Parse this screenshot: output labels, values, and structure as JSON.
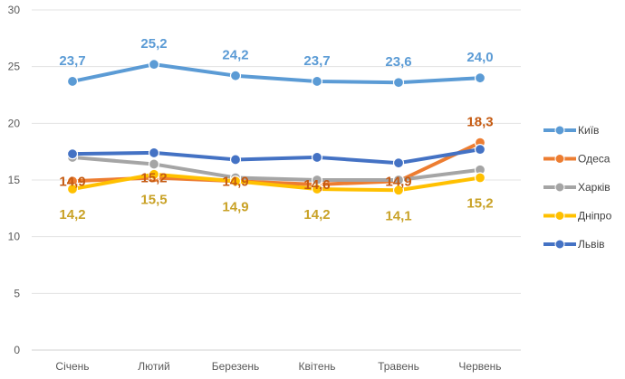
{
  "chart_data": {
    "type": "line",
    "categories": [
      "Січень",
      "Лютий",
      "Березень",
      "Квітень",
      "Травень",
      "Червень"
    ],
    "ylim": [
      0,
      30
    ],
    "yticks": [
      0,
      5,
      10,
      15,
      20,
      25,
      30
    ],
    "grid": true,
    "legend_position": "right",
    "series": [
      {
        "name": "Київ",
        "color": "#5B9BD5",
        "values": [
          23.7,
          25.2,
          24.2,
          23.7,
          23.6,
          24.0
        ],
        "labels": [
          "23,7",
          "25,2",
          "24,2",
          "23,7",
          "23,6",
          "24,0"
        ],
        "label_pos": "above"
      },
      {
        "name": "Одеса",
        "color": "#ED7D31",
        "values": [
          14.9,
          15.2,
          14.9,
          14.6,
          14.9,
          18.3
        ],
        "labels": [
          "",
          "",
          "",
          "",
          "",
          "18,3"
        ],
        "label_pos": "above"
      },
      {
        "name": "Харків",
        "color": "#A5A5A5",
        "values": [
          17.0,
          16.4,
          15.2,
          15.0,
          15.0,
          15.9
        ],
        "labels": [
          "",
          "",
          "",
          "",
          "",
          ""
        ],
        "label_pos": "above"
      },
      {
        "name": "Дніпро",
        "color": "#FFC000",
        "values": [
          14.2,
          15.5,
          14.9,
          14.2,
          14.1,
          15.2
        ],
        "labels": [
          "14,2",
          "15,5",
          "14,9",
          "14,2",
          "14,1",
          "15,2"
        ],
        "label_pos": "below"
      },
      {
        "name": "Львів",
        "color": "#4472C4",
        "values": [
          17.3,
          17.4,
          16.8,
          17.0,
          16.5,
          17.7
        ],
        "labels": [
          "",
          "",
          "",
          "",
          "",
          ""
        ],
        "label_pos": "above"
      }
    ],
    "overlap_labels": [
      {
        "series": 1,
        "index": 0,
        "text": "14,9"
      },
      {
        "series": 1,
        "index": 1,
        "text": "15,2"
      },
      {
        "series": 1,
        "index": 2,
        "text": "14,9"
      },
      {
        "series": 1,
        "index": 3,
        "text": "14,6"
      },
      {
        "series": 1,
        "index": 4,
        "text": "14,9"
      }
    ]
  }
}
